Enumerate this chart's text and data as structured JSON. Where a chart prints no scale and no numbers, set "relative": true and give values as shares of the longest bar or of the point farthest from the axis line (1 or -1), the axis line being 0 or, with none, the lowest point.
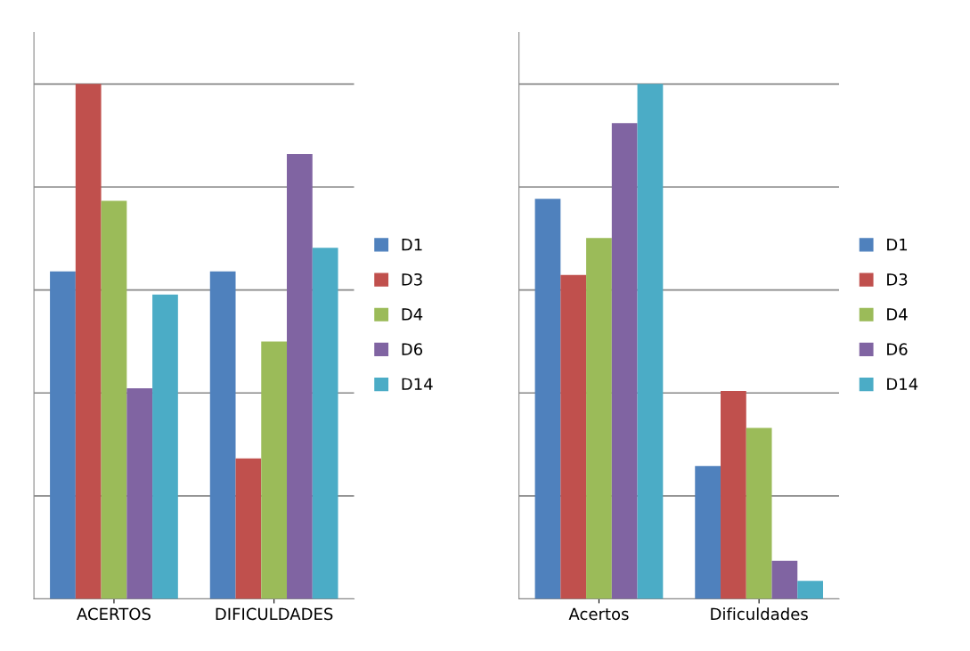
{
  "chart_data": [
    {
      "type": "bar",
      "relative": true,
      "categories": [
        "ACERTOS",
        "DIFICULDADES"
      ],
      "grid": "y",
      "legend": "right",
      "series": [
        {
          "name": "D1",
          "color": "#4f81bd",
          "values": [
            0.636,
            0.636
          ]
        },
        {
          "name": "D3",
          "color": "#c0504d",
          "values": [
            1,
            0.273
          ]
        },
        {
          "name": "D4",
          "color": "#9bbb59",
          "values": [
            0.773,
            0.5
          ]
        },
        {
          "name": "D6",
          "color": "#8064a2",
          "values": [
            0.409,
            0.864
          ]
        },
        {
          "name": "D14",
          "color": "#4bacc6",
          "values": [
            0.591,
            0.682
          ]
        }
      ]
    },
    {
      "type": "bar",
      "relative": true,
      "categories": [
        "Acertos",
        "Dificuldades"
      ],
      "grid": "y",
      "legend": "right",
      "series": [
        {
          "name": "D1",
          "color": "#4f81bd",
          "values": [
            0.777,
            0.258
          ]
        },
        {
          "name": "D3",
          "color": "#c0504d",
          "values": [
            0.629,
            0.404
          ]
        },
        {
          "name": "D4",
          "color": "#9bbb59",
          "values": [
            0.701,
            0.332
          ]
        },
        {
          "name": "D6",
          "color": "#8064a2",
          "values": [
            0.924,
            0.074
          ]
        },
        {
          "name": "D14",
          "color": "#4bacc6",
          "values": [
            1,
            0.035
          ]
        }
      ]
    }
  ]
}
